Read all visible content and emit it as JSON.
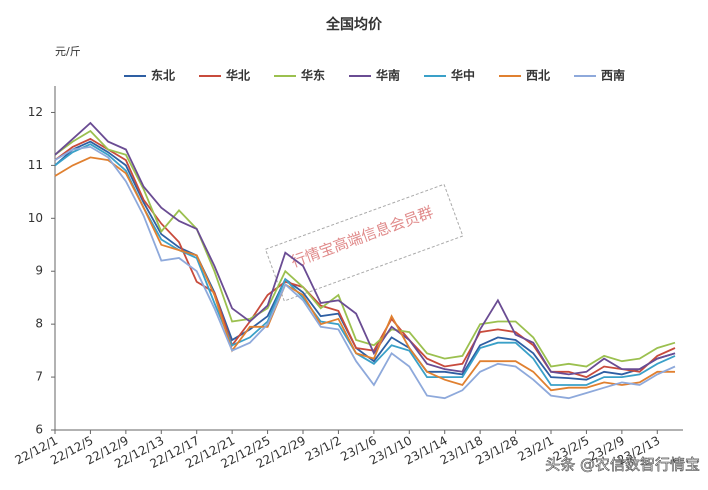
{
  "chart_data": {
    "type": "line",
    "title": "全国均价",
    "y_unit": "元/斤",
    "watermark": "行情宝高端信息会员群",
    "source": "头条 @农信数智行情宝",
    "categories": [
      "22/12/1",
      null,
      "22/12/5",
      null,
      "22/12/9",
      null,
      "22/12/13",
      null,
      "22/12/17",
      null,
      "22/12/21",
      null,
      "22/12/25",
      null,
      "22/12/29",
      null,
      "23/1/2",
      null,
      "23/1/6",
      null,
      "23/1/10",
      null,
      "23/1/14",
      null,
      "23/1/18",
      null,
      "23/1/28",
      null,
      "23/2/1",
      null,
      "23/2/5",
      null,
      "23/2/9",
      null,
      "23/2/13",
      null
    ],
    "series": [
      {
        "name": "东北",
        "color": "#2e5fa3",
        "values": [
          11.0,
          11.3,
          11.45,
          11.25,
          11.0,
          10.3,
          9.7,
          9.45,
          9.3,
          8.6,
          7.7,
          7.9,
          8.15,
          8.85,
          8.6,
          8.15,
          8.2,
          7.55,
          7.3,
          7.75,
          7.55,
          7.1,
          7.1,
          7.05,
          7.6,
          7.75,
          7.7,
          7.45,
          7.0,
          6.98,
          6.95,
          7.1,
          7.05,
          7.15,
          7.35,
          7.45
        ]
      },
      {
        "name": "华北",
        "color": "#c84b3c",
        "values": [
          11.1,
          11.35,
          11.5,
          11.3,
          11.1,
          10.35,
          9.9,
          9.55,
          8.8,
          8.6,
          7.6,
          8.05,
          8.55,
          8.8,
          8.7,
          8.35,
          8.25,
          7.55,
          7.5,
          8.1,
          7.7,
          7.35,
          7.2,
          7.25,
          7.85,
          7.9,
          7.85,
          7.6,
          7.1,
          7.1,
          7.0,
          7.2,
          7.15,
          7.1,
          7.4,
          7.55
        ]
      },
      {
        "name": "华东",
        "color": "#9bc04f",
        "values": [
          11.2,
          11.45,
          11.65,
          11.3,
          11.2,
          10.55,
          9.75,
          10.15,
          9.8,
          9.0,
          8.05,
          8.1,
          8.3,
          9.0,
          8.7,
          8.3,
          8.55,
          7.7,
          7.6,
          7.9,
          7.85,
          7.45,
          7.35,
          7.4,
          8.0,
          8.05,
          8.05,
          7.75,
          7.2,
          7.25,
          7.2,
          7.4,
          7.3,
          7.35,
          7.55,
          7.65
        ]
      },
      {
        "name": "华南",
        "color": "#6a4c93",
        "values": [
          11.2,
          11.5,
          11.8,
          11.45,
          11.3,
          10.6,
          10.2,
          9.95,
          9.8,
          9.1,
          8.3,
          8.05,
          8.35,
          9.35,
          9.1,
          8.4,
          8.45,
          8.2,
          7.45,
          7.95,
          7.7,
          7.25,
          7.15,
          7.1,
          7.9,
          8.45,
          7.8,
          7.65,
          7.1,
          7.05,
          7.1,
          7.35,
          7.15,
          7.15,
          7.35,
          7.45
        ]
      },
      {
        "name": "华中",
        "color": "#3aa0c8",
        "values": [
          11.0,
          11.25,
          11.4,
          11.2,
          10.9,
          10.2,
          9.6,
          9.4,
          9.25,
          8.4,
          7.6,
          7.75,
          8.05,
          8.85,
          8.5,
          8.05,
          8.0,
          7.45,
          7.25,
          7.6,
          7.5,
          7.0,
          7.0,
          7.0,
          7.55,
          7.65,
          7.65,
          7.35,
          6.85,
          6.85,
          6.85,
          7.0,
          7.0,
          7.05,
          7.25,
          7.4
        ]
      },
      {
        "name": "西北",
        "color": "#e08030",
        "values": [
          10.8,
          11.0,
          11.15,
          11.1,
          10.85,
          10.2,
          9.5,
          9.4,
          9.3,
          8.55,
          7.5,
          7.95,
          7.95,
          8.75,
          8.55,
          8.0,
          8.1,
          7.45,
          7.35,
          8.15,
          7.55,
          7.1,
          6.95,
          6.85,
          7.3,
          7.3,
          7.3,
          7.1,
          6.75,
          6.8,
          6.8,
          6.9,
          6.85,
          6.9,
          7.1,
          7.1
        ]
      },
      {
        "name": "西南",
        "color": "#8ea9db",
        "values": [
          11.1,
          11.3,
          11.35,
          11.15,
          10.7,
          10.05,
          9.2,
          9.25,
          9.0,
          8.3,
          7.5,
          7.65,
          8.0,
          8.75,
          8.45,
          7.95,
          7.9,
          7.3,
          6.85,
          7.45,
          7.2,
          6.65,
          6.6,
          6.75,
          7.1,
          7.25,
          7.2,
          6.95,
          6.65,
          6.6,
          6.7,
          6.8,
          6.9,
          6.85,
          7.05,
          7.2
        ]
      }
    ],
    "ylim": [
      6,
      12.5
    ],
    "yticks": [
      6,
      7,
      8,
      9,
      10,
      11,
      12
    ],
    "grid": false,
    "legend": "top"
  }
}
